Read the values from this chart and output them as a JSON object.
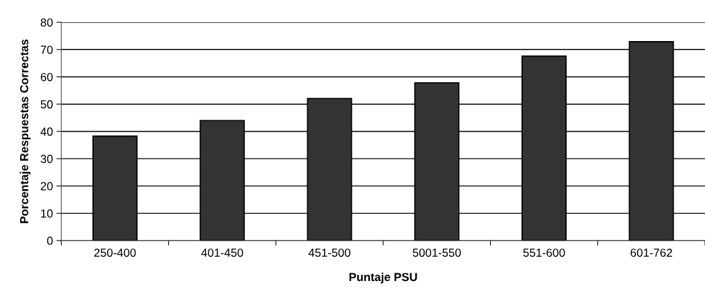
{
  "chart_data": {
    "type": "bar",
    "xlabel": "Puntaje PSU",
    "ylabel": "Porcentaje Respuestas Correctas",
    "categories": [
      "250-400",
      "401-450",
      "451-500",
      "5001-550",
      "551-600",
      "601-762"
    ],
    "values": [
      38.3,
      44.0,
      52.1,
      57.8,
      67.6,
      72.9
    ],
    "color": "#333333",
    "ylim": [
      0,
      80
    ],
    "yticks": [
      0,
      10,
      20,
      30,
      40,
      50,
      60,
      70,
      80
    ],
    "grid": "y",
    "legend": false
  }
}
